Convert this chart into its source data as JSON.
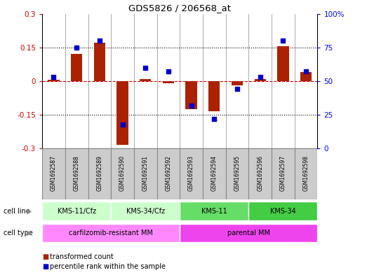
{
  "title": "GDS5826 / 206568_at",
  "samples": [
    "GSM1692587",
    "GSM1692588",
    "GSM1692589",
    "GSM1692590",
    "GSM1692591",
    "GSM1692592",
    "GSM1692593",
    "GSM1692594",
    "GSM1692595",
    "GSM1692596",
    "GSM1692597",
    "GSM1692598"
  ],
  "transformed_count": [
    0.005,
    0.12,
    0.17,
    -0.285,
    0.01,
    -0.01,
    -0.125,
    -0.135,
    -0.02,
    0.01,
    0.155,
    0.04
  ],
  "percentile_rank": [
    53,
    75,
    80,
    18,
    60,
    57,
    32,
    22,
    44,
    53,
    80,
    57
  ],
  "cell_line_groups": [
    {
      "label": "KMS-11/Cfz",
      "start": 0,
      "end": 2,
      "color": "#ccffcc"
    },
    {
      "label": "KMS-34/Cfz",
      "start": 3,
      "end": 5,
      "color": "#ccffcc"
    },
    {
      "label": "KMS-11",
      "start": 6,
      "end": 8,
      "color": "#66dd66"
    },
    {
      "label": "KMS-34",
      "start": 9,
      "end": 11,
      "color": "#44cc44"
    }
  ],
  "cell_type_groups": [
    {
      "label": "carfilzomib-resistant MM",
      "start": 0,
      "end": 5,
      "color": "#ff88ff"
    },
    {
      "label": "parental MM",
      "start": 6,
      "end": 11,
      "color": "#ee44ee"
    }
  ],
  "bar_color": "#aa2200",
  "dot_color": "#0000cc",
  "left_ylim": [
    -0.3,
    0.3
  ],
  "right_ylim": [
    0,
    100
  ],
  "left_yticks": [
    -0.3,
    -0.15,
    0.0,
    0.15,
    0.3
  ],
  "right_yticks": [
    0,
    25,
    50,
    75,
    100
  ],
  "left_yticklabels": [
    "-0.3",
    "-0.15",
    "0",
    "0.15",
    "0.3"
  ],
  "right_yticklabels": [
    "0",
    "25",
    "50",
    "75",
    "100%"
  ],
  "legend_items": [
    {
      "label": "transformed count",
      "color": "#aa2200"
    },
    {
      "label": "percentile rank within the sample",
      "color": "#0000cc"
    }
  ],
  "background_color": "#ffffff",
  "zero_line_color": "#cc0000",
  "sample_box_color": "#cccccc",
  "sample_box_edge": "#888888"
}
